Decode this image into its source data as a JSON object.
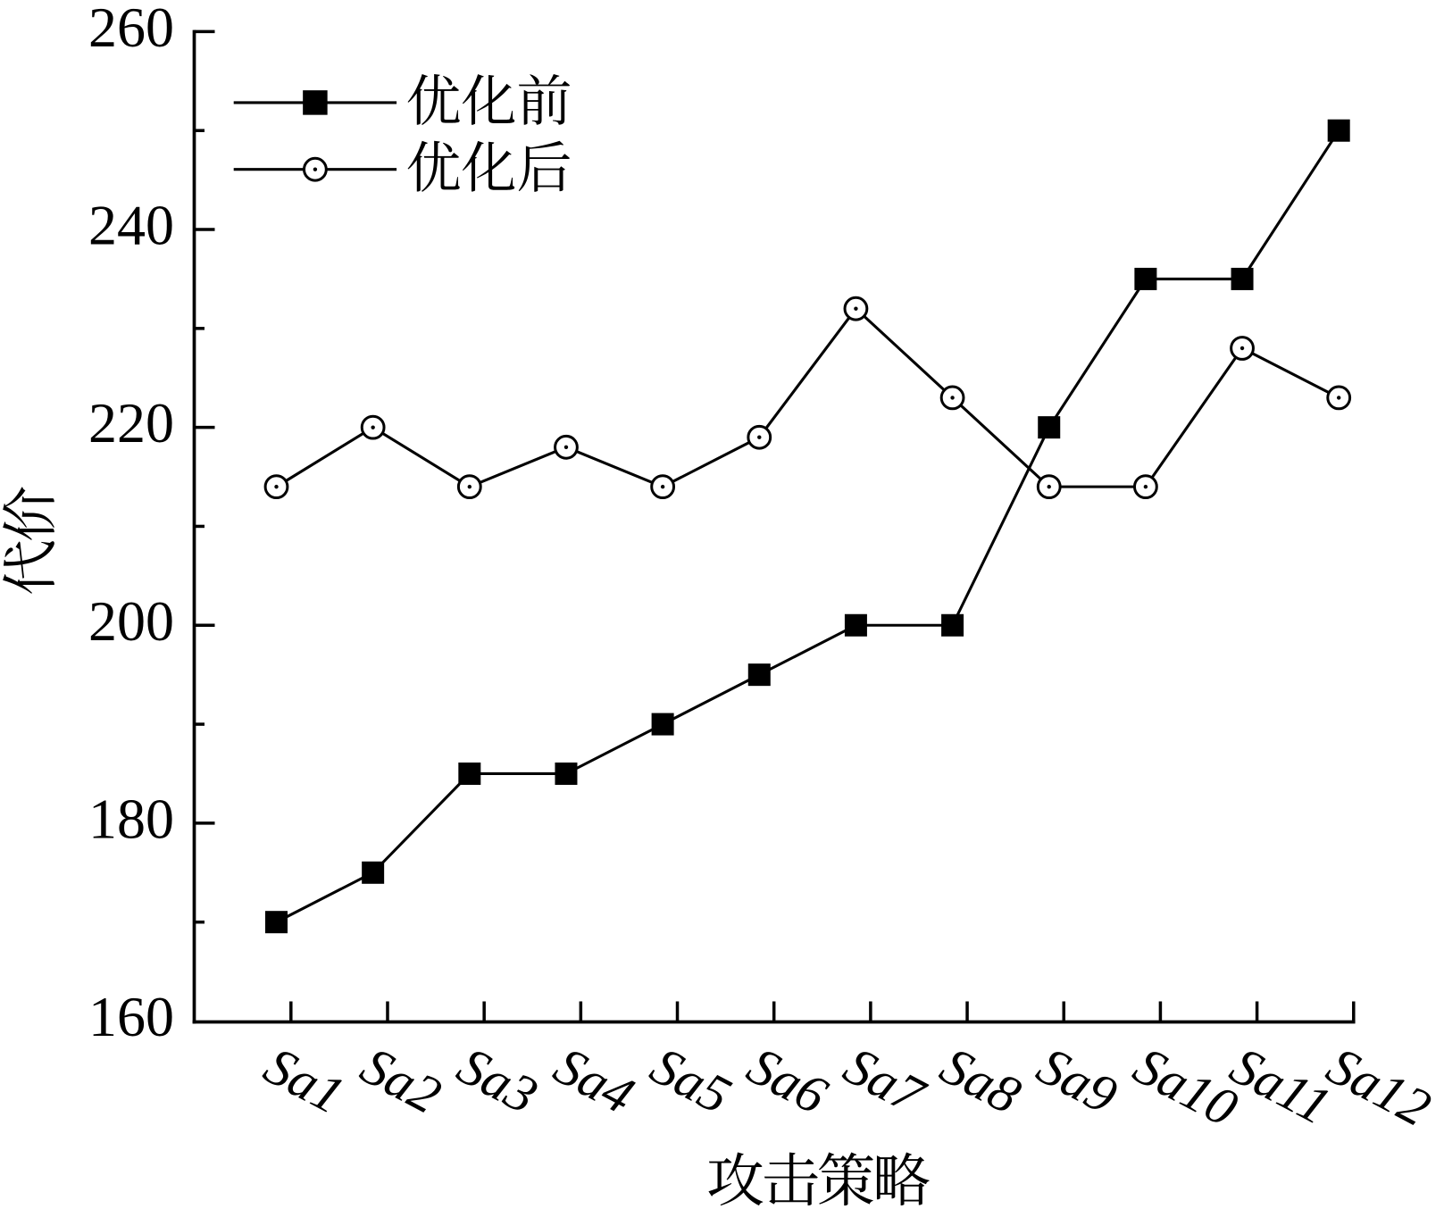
{
  "figure": {
    "background_color": "#ffffff",
    "ink_color": "#000000"
  },
  "chart_data": {
    "type": "line",
    "categories": [
      "Sa1",
      "Sa2",
      "Sa3",
      "Sa4",
      "Sa5",
      "Sa6",
      "Sa7",
      "Sa8",
      "Sa9",
      "Sa10",
      "Sa11",
      "Sa12"
    ],
    "series": [
      {
        "name": "优化前",
        "marker": "filled-square",
        "color": "#000000",
        "values": [
          170,
          175,
          185,
          185,
          190,
          195,
          200,
          200,
          220,
          235,
          235,
          250
        ]
      },
      {
        "name": "优化后",
        "marker": "open-circle-center-dot",
        "color": "#000000",
        "values": [
          214,
          220,
          214,
          218,
          214,
          219,
          232,
          223,
          214,
          214,
          228,
          223
        ]
      }
    ],
    "xlabel": "攻击策略",
    "ylabel": "代价",
    "ylim": [
      160,
      260
    ],
    "yticks": [
      160,
      180,
      200,
      220,
      240,
      260
    ],
    "y_minor_tick_step": 10,
    "grid": false,
    "legend_position": "top-left-inside",
    "legend_entries": [
      "优化前",
      "优化后"
    ]
  }
}
